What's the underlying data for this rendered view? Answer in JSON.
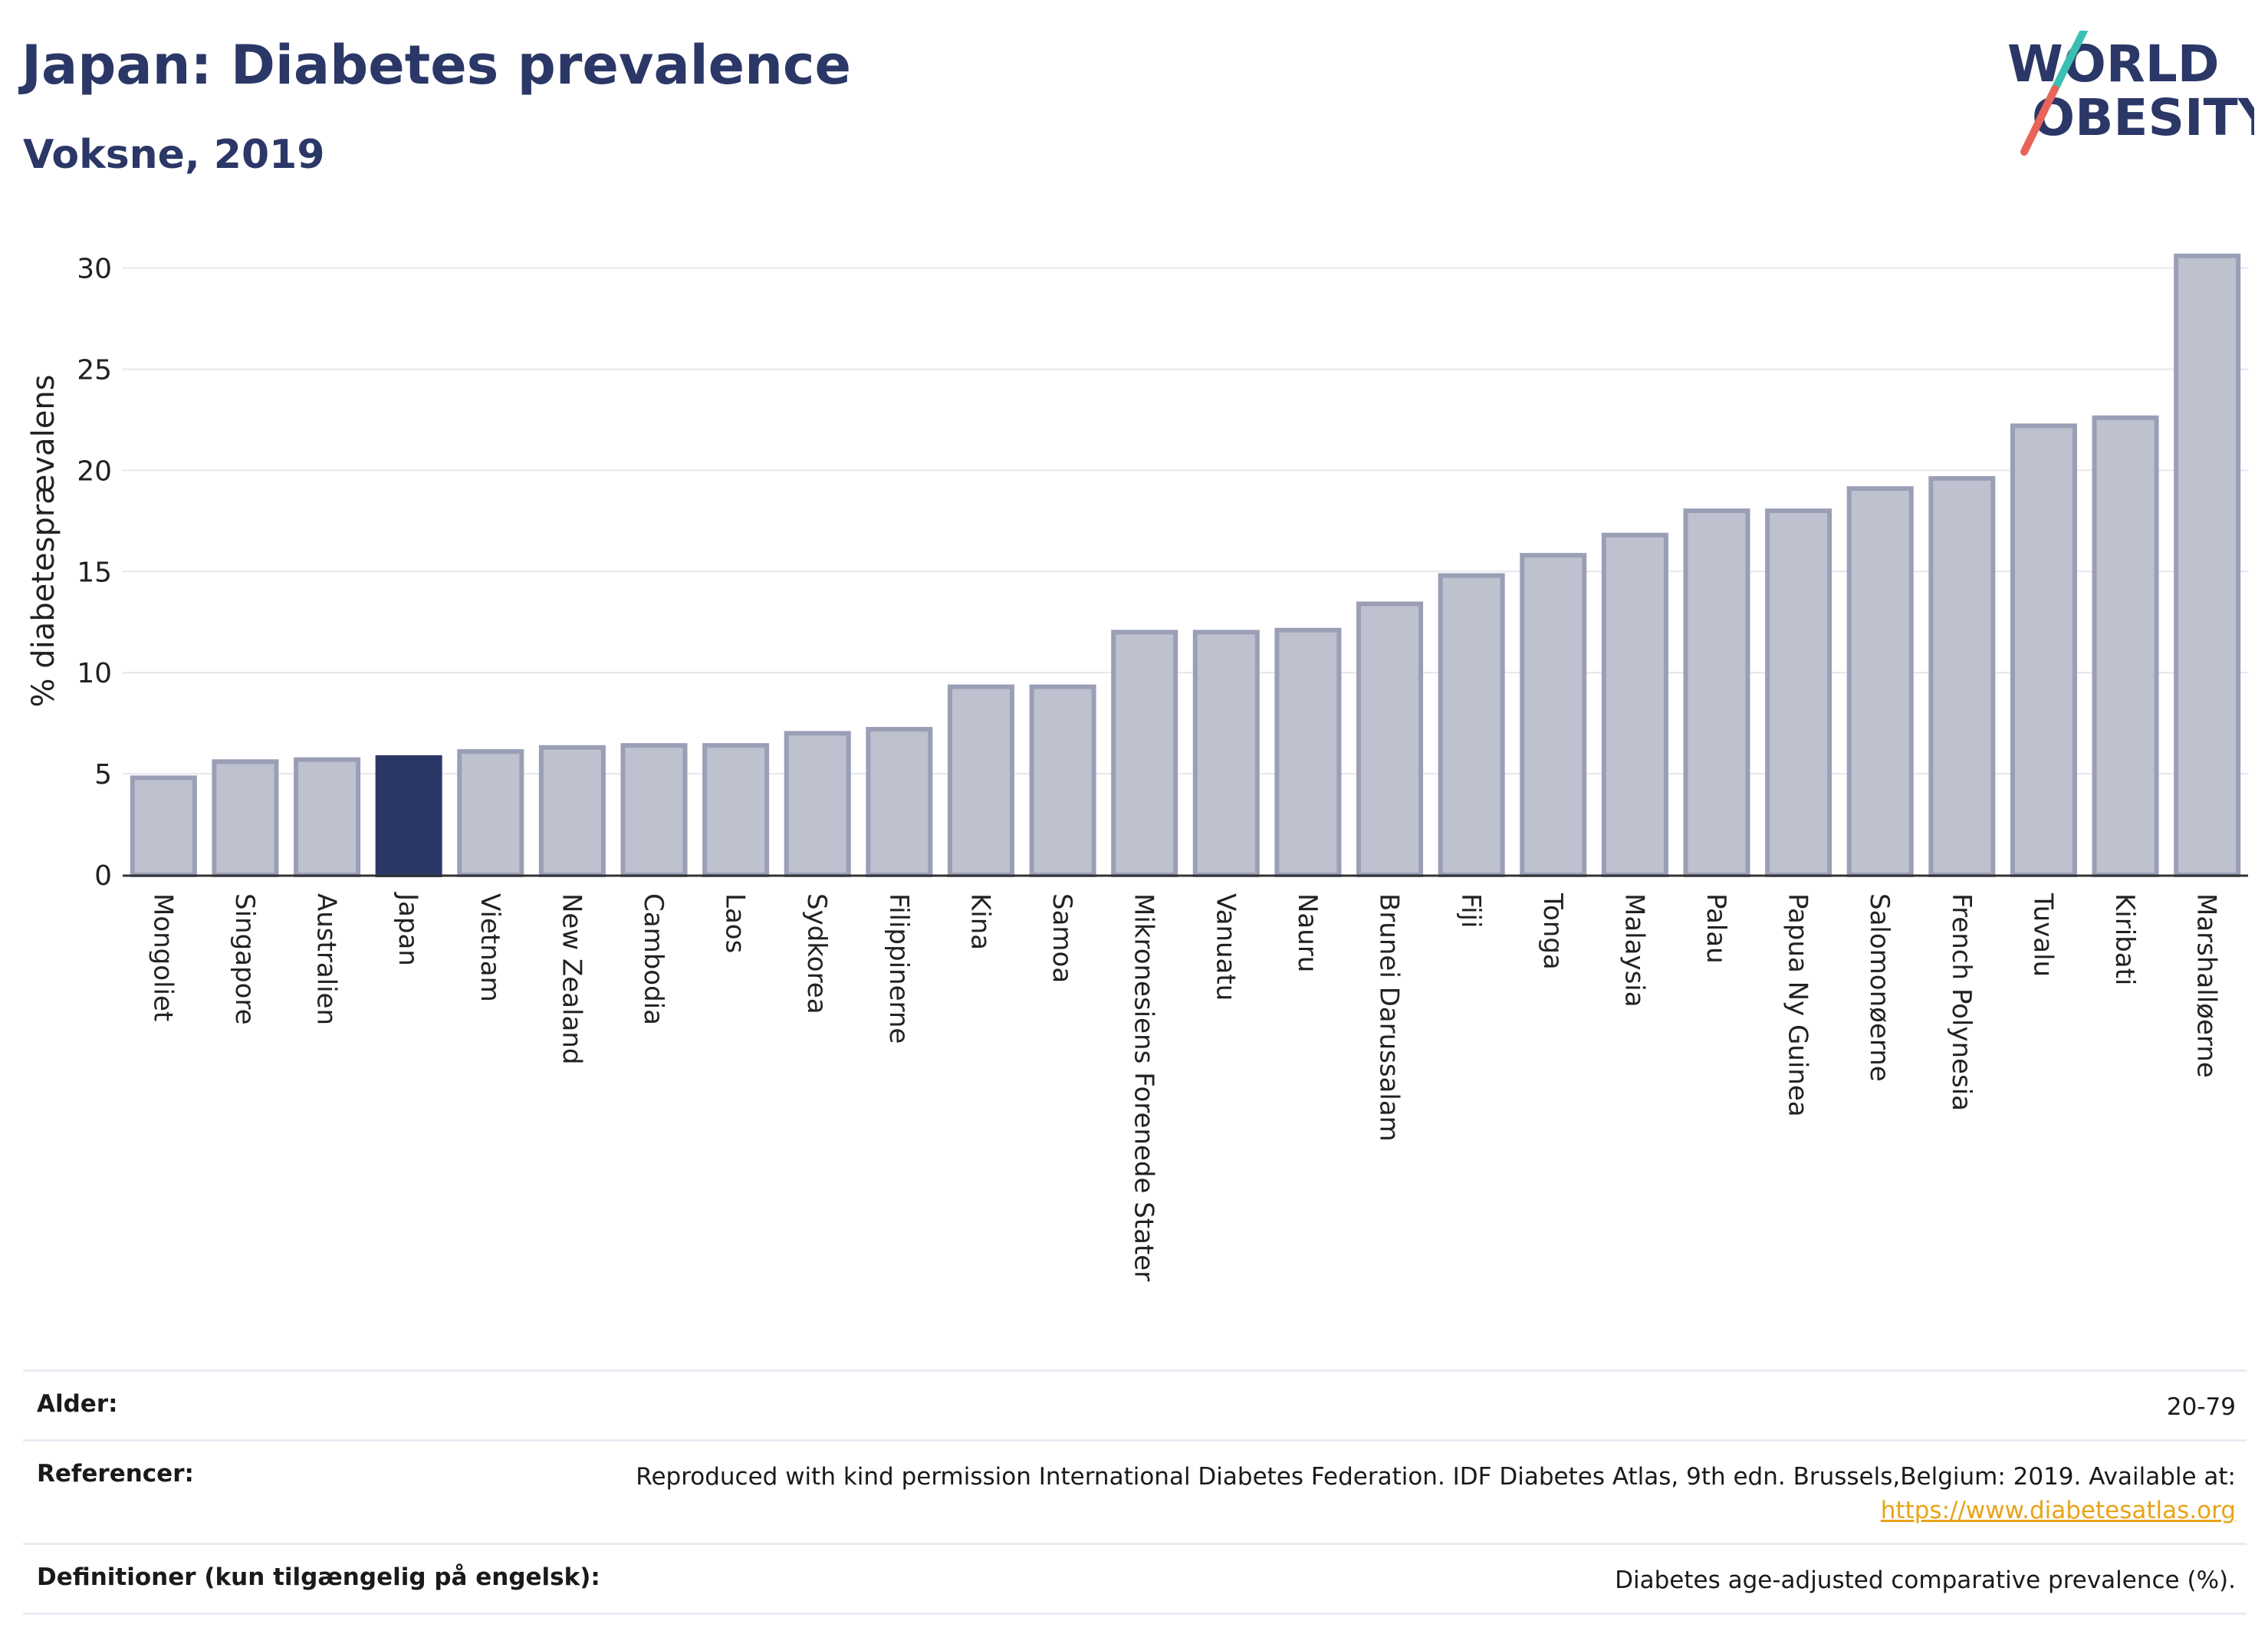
{
  "header": {
    "title": "Japan: Diabetes prevalence",
    "subtitle": "Voksne, 2019"
  },
  "logo": {
    "line1": "WORLD",
    "line2": "OBESITY",
    "colors": {
      "text": "#2b3766",
      "slash_top": "#3bbfb3",
      "slash_bottom": "#e8645a"
    }
  },
  "chart_data": {
    "type": "bar",
    "ylabel": "% diabetesprævalens",
    "xlabel": "",
    "ylim": [
      0,
      31.5
    ],
    "yticks": [
      0,
      5,
      10,
      15,
      20,
      25,
      30
    ],
    "grid": true,
    "highlight": "Japan",
    "colors": {
      "bar": "#bec1ce",
      "bar_border": "#9a9fb6",
      "highlight": "#2b3766"
    },
    "categories": [
      "Mongoliet",
      "Singapore",
      "Australien",
      "Japan",
      "Vietnam",
      "New Zealand",
      "Cambodia",
      "Laos",
      "Sydkorea",
      "Filippinerne",
      "Kina",
      "Samoa",
      "Mikronesiens Forenede Stater",
      "Vanuatu",
      "Nauru",
      "Brunei Darussalam",
      "Fiji",
      "Tonga",
      "Malaysia",
      "Palau",
      "Papua Ny Guinea",
      "Salomonøerne",
      "French Polynesia",
      "Tuvalu",
      "Kiribati",
      "Marshalløerne"
    ],
    "values": [
      4.8,
      5.6,
      5.7,
      5.8,
      6.1,
      6.3,
      6.4,
      6.4,
      7.0,
      7.2,
      9.3,
      9.3,
      12.0,
      12.0,
      12.1,
      13.4,
      14.8,
      15.8,
      16.8,
      18.0,
      18.0,
      19.1,
      19.6,
      22.2,
      22.6,
      30.6
    ]
  },
  "meta": {
    "rows": [
      {
        "label": "Alder:",
        "value": "20-79"
      },
      {
        "label": "Referencer:",
        "value": "Reproduced with kind permission International Diabetes Federation. IDF Diabetes Atlas, 9th edn. Brussels,Belgium: 2019. Available at:",
        "link": "https://www.diabetesatlas.org"
      },
      {
        "label": "Definitioner (kun tilgængelig på engelsk):",
        "value": "Diabetes age-adjusted comparative prevalence (%)."
      }
    ]
  }
}
